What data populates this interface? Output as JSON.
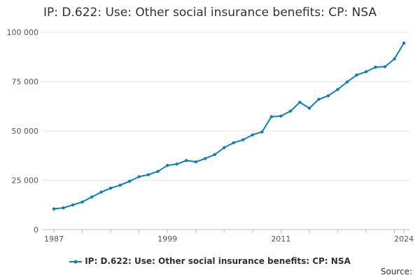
{
  "chart_data": {
    "type": "line",
    "title": "IP: D.622: Use: Other social insurance benefits: CP: NSA",
    "xlabel": "",
    "ylabel": "",
    "ylim": [
      0,
      100000
    ],
    "xlim": [
      1987,
      2024
    ],
    "grid": true,
    "legend_position": "bottom-center",
    "yticks": [
      0,
      25000,
      50000,
      75000,
      100000
    ],
    "ytick_labels": [
      "0",
      "25 000",
      "50 000",
      "75 000",
      "100 000"
    ],
    "xtick_labels": [
      "1987",
      "1999",
      "2011",
      "2024"
    ],
    "series": [
      {
        "name": "IP: D.622: Use: Other social insurance benefits: CP: NSA",
        "color": "#0f7fb4",
        "x": [
          1987,
          1988,
          1989,
          1990,
          1991,
          1992,
          1993,
          1994,
          1995,
          1996,
          1997,
          1998,
          1999,
          2000,
          2001,
          2002,
          2003,
          2004,
          2005,
          2006,
          2007,
          2008,
          2009,
          2010,
          2011,
          2012,
          2013,
          2014,
          2015,
          2016,
          2017,
          2018,
          2019,
          2020,
          2021,
          2022,
          2023,
          2024
        ],
        "values": [
          10500,
          11000,
          12500,
          14000,
          16500,
          19000,
          21000,
          22500,
          24500,
          26800,
          27800,
          29500,
          32500,
          33200,
          35000,
          34300,
          36000,
          38000,
          41500,
          44000,
          45500,
          48000,
          49500,
          57200,
          57500,
          60000,
          64500,
          61500,
          66000,
          67800,
          71000,
          74800,
          78300,
          80000,
          82300,
          82500,
          86500,
          94500
        ]
      }
    ]
  },
  "legend": {
    "label": "IP: D.622: Use: Other social insurance benefits: CP: NSA"
  },
  "source": {
    "label": "Source:"
  }
}
